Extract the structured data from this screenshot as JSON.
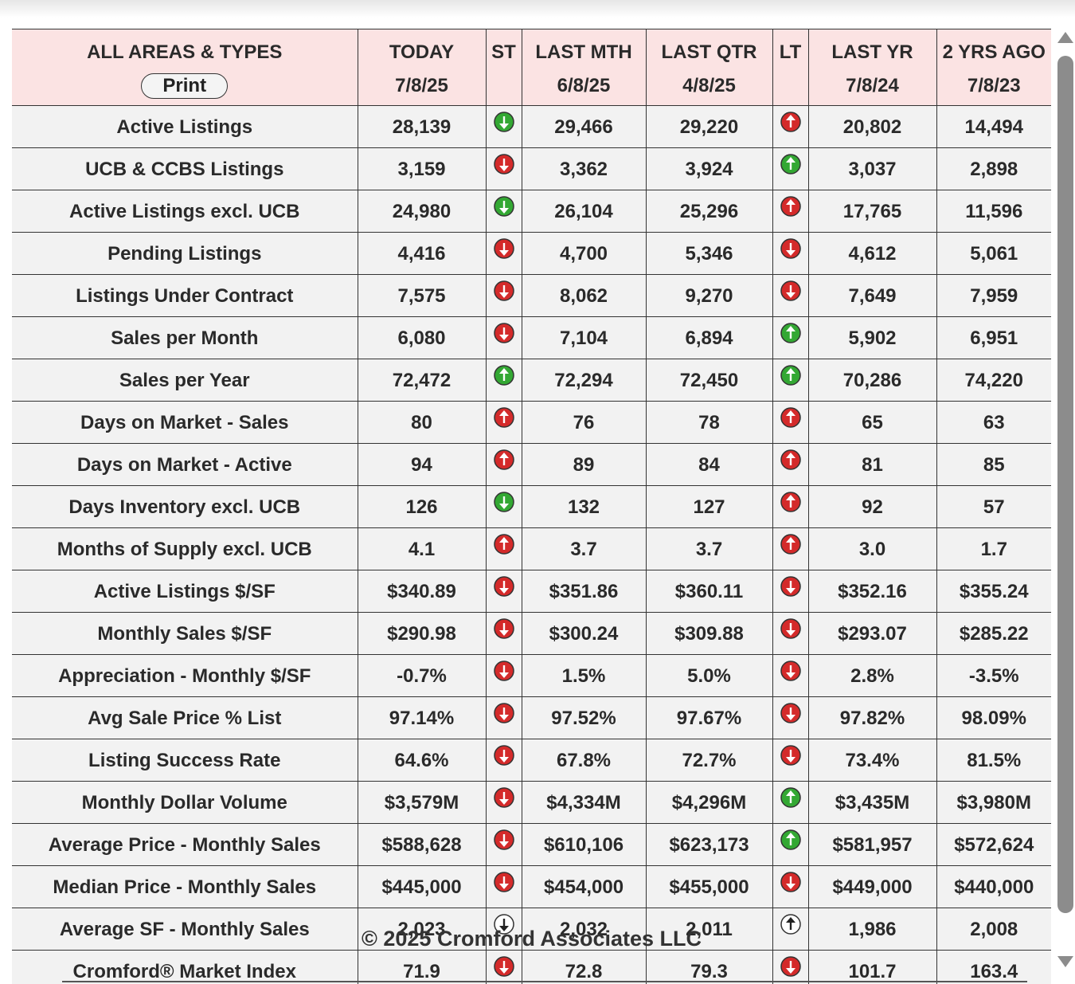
{
  "header": {
    "title": "ALL AREAS & TYPES",
    "print": "Print"
  },
  "table": {
    "columns": [
      {
        "name": "TODAY",
        "date": "7/8/25"
      },
      {
        "name": "ST"
      },
      {
        "name": "LAST MTH",
        "date": "6/8/25"
      },
      {
        "name": "LAST QTR",
        "date": "4/8/25"
      },
      {
        "name": "LT"
      },
      {
        "name": "LAST YR",
        "date": "7/8/24"
      },
      {
        "name": "2 YRS AGO",
        "date": "7/8/23"
      }
    ],
    "rows": [
      {
        "label": "Active Listings",
        "values": [
          "28,139",
          "29,466",
          "29,220",
          "20,802",
          "14,494"
        ],
        "st": {
          "direction": "down",
          "color": "#33a833"
        },
        "lt": {
          "direction": "up",
          "color": "#d42a2a"
        }
      },
      {
        "label": "UCB & CCBS Listings",
        "values": [
          "3,159",
          "3,362",
          "3,924",
          "3,037",
          "2,898"
        ],
        "st": {
          "direction": "down",
          "color": "#d42a2a"
        },
        "lt": {
          "direction": "up",
          "color": "#33a833"
        }
      },
      {
        "label": "Active Listings excl. UCB",
        "values": [
          "24,980",
          "26,104",
          "25,296",
          "17,765",
          "11,596"
        ],
        "st": {
          "direction": "down",
          "color": "#33a833"
        },
        "lt": {
          "direction": "up",
          "color": "#d42a2a"
        }
      },
      {
        "label": "Pending Listings",
        "values": [
          "4,416",
          "4,700",
          "5,346",
          "4,612",
          "5,061"
        ],
        "st": {
          "direction": "down",
          "color": "#d42a2a"
        },
        "lt": {
          "direction": "down",
          "color": "#d42a2a"
        }
      },
      {
        "label": "Listings Under Contract",
        "values": [
          "7,575",
          "8,062",
          "9,270",
          "7,649",
          "7,959"
        ],
        "st": {
          "direction": "down",
          "color": "#d42a2a"
        },
        "lt": {
          "direction": "down",
          "color": "#d42a2a"
        }
      },
      {
        "label": "Sales per Month",
        "values": [
          "6,080",
          "7,104",
          "6,894",
          "5,902",
          "6,951"
        ],
        "st": {
          "direction": "down",
          "color": "#d42a2a"
        },
        "lt": {
          "direction": "up",
          "color": "#33a833"
        }
      },
      {
        "label": "Sales per Year",
        "values": [
          "72,472",
          "72,294",
          "72,450",
          "70,286",
          "74,220"
        ],
        "st": {
          "direction": "up",
          "color": "#33a833"
        },
        "lt": {
          "direction": "up",
          "color": "#33a833"
        }
      },
      {
        "label": "Days on Market - Sales",
        "values": [
          "80",
          "76",
          "78",
          "65",
          "63"
        ],
        "st": {
          "direction": "up",
          "color": "#d42a2a"
        },
        "lt": {
          "direction": "up",
          "color": "#d42a2a"
        }
      },
      {
        "label": "Days on Market - Active",
        "values": [
          "94",
          "89",
          "84",
          "81",
          "85"
        ],
        "st": {
          "direction": "up",
          "color": "#d42a2a"
        },
        "lt": {
          "direction": "up",
          "color": "#d42a2a"
        }
      },
      {
        "label": "Days Inventory excl. UCB",
        "values": [
          "126",
          "132",
          "127",
          "92",
          "57"
        ],
        "st": {
          "direction": "down",
          "color": "#33a833"
        },
        "lt": {
          "direction": "up",
          "color": "#d42a2a"
        }
      },
      {
        "label": "Months of Supply excl. UCB",
        "values": [
          "4.1",
          "3.7",
          "3.7",
          "3.0",
          "1.7"
        ],
        "st": {
          "direction": "up",
          "color": "#d42a2a"
        },
        "lt": {
          "direction": "up",
          "color": "#d42a2a"
        }
      },
      {
        "label": "Active Listings $/SF",
        "values": [
          "$340.89",
          "$351.86",
          "$360.11",
          "$352.16",
          "$355.24"
        ],
        "st": {
          "direction": "down",
          "color": "#d42a2a"
        },
        "lt": {
          "direction": "down",
          "color": "#d42a2a"
        }
      },
      {
        "label": "Monthly Sales $/SF",
        "values": [
          "$290.98",
          "$300.24",
          "$309.88",
          "$293.07",
          "$285.22"
        ],
        "st": {
          "direction": "down",
          "color": "#d42a2a"
        },
        "lt": {
          "direction": "down",
          "color": "#d42a2a"
        }
      },
      {
        "label": "Appreciation - Monthly $/SF",
        "values": [
          "-0.7%",
          "1.5%",
          "5.0%",
          "2.8%",
          "-3.5%"
        ],
        "st": {
          "direction": "down",
          "color": "#d42a2a"
        },
        "lt": {
          "direction": "down",
          "color": "#d42a2a"
        }
      },
      {
        "label": "Avg Sale Price % List",
        "values": [
          "97.14%",
          "97.52%",
          "97.67%",
          "97.82%",
          "98.09%"
        ],
        "st": {
          "direction": "down",
          "color": "#d42a2a"
        },
        "lt": {
          "direction": "down",
          "color": "#d42a2a"
        }
      },
      {
        "label": "Listing Success Rate",
        "values": [
          "64.6%",
          "67.8%",
          "72.7%",
          "73.4%",
          "81.5%"
        ],
        "st": {
          "direction": "down",
          "color": "#d42a2a"
        },
        "lt": {
          "direction": "down",
          "color": "#d42a2a"
        }
      },
      {
        "label": "Monthly Dollar Volume",
        "values": [
          "$3,579M",
          "$4,334M",
          "$4,296M",
          "$3,435M",
          "$3,980M"
        ],
        "st": {
          "direction": "down",
          "color": "#d42a2a"
        },
        "lt": {
          "direction": "up",
          "color": "#33a833"
        }
      },
      {
        "label": "Average Price - Monthly Sales",
        "values": [
          "$588,628",
          "$610,106",
          "$623,173",
          "$581,957",
          "$572,624"
        ],
        "st": {
          "direction": "down",
          "color": "#d42a2a"
        },
        "lt": {
          "direction": "up",
          "color": "#33a833"
        }
      },
      {
        "label": "Median Price - Monthly Sales",
        "values": [
          "$445,000",
          "$454,000",
          "$455,000",
          "$449,000",
          "$440,000"
        ],
        "st": {
          "direction": "down",
          "color": "#d42a2a"
        },
        "lt": {
          "direction": "down",
          "color": "#d42a2a"
        }
      },
      {
        "label": "Average SF - Monthly Sales",
        "values": [
          "2,023",
          "2,032",
          "2,011",
          "1,986",
          "2,008"
        ],
        "st": {
          "direction": "down",
          "color": "#ffffff"
        },
        "lt": {
          "direction": "up",
          "color": "#ffffff"
        }
      },
      {
        "label": "Cromford® Market Index",
        "values": [
          "71.9",
          "72.8",
          "79.3",
          "101.7",
          "163.4"
        ],
        "st": {
          "direction": "down",
          "color": "#d42a2a"
        },
        "lt": {
          "direction": "down",
          "color": "#d42a2a"
        }
      }
    ]
  },
  "footer": {
    "copyright": "© 2025 Cromford Associates LLC"
  }
}
